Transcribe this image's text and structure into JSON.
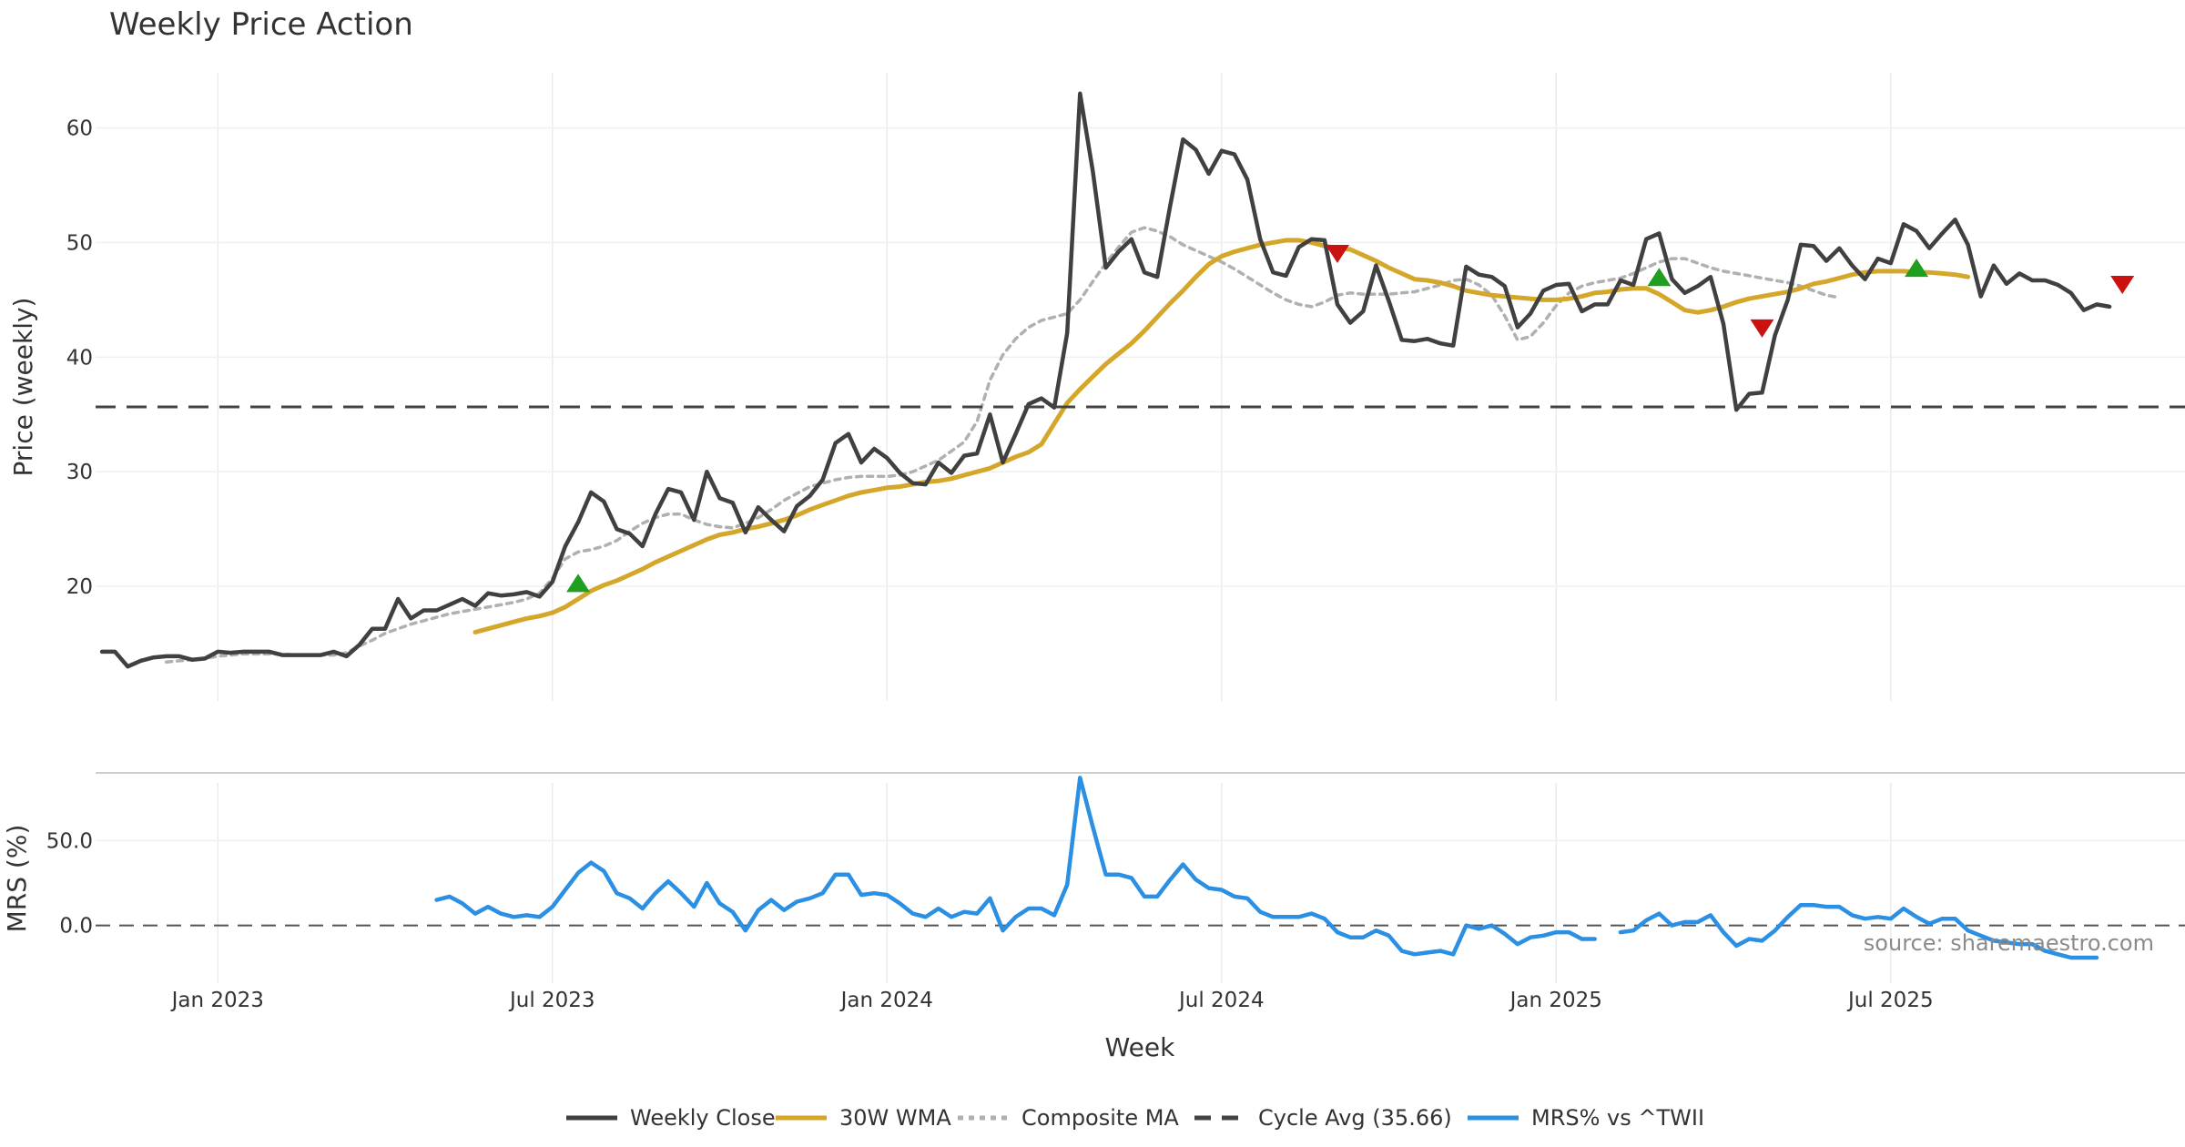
{
  "chart_data": {
    "title": "Weekly Price Action",
    "source": "source: sharemaestro.com",
    "xlabel": "Week",
    "x_ticks": [
      "Jan 2023",
      "Jul 2023",
      "Jan 2024",
      "Jul 2024",
      "Jan 2025",
      "Jul 2025"
    ],
    "x_tick_weeks": [
      9,
      35,
      61,
      87,
      113,
      139
    ],
    "panels": [
      {
        "name": "price",
        "type": "line",
        "ylabel": "Price (weekly)",
        "ylim": [
          10,
          66
        ],
        "y_ticks": [
          20,
          30,
          40,
          50,
          60
        ],
        "grid": true,
        "series": [
          {
            "name": "Weekly Close",
            "color": "#404040",
            "style": "solid",
            "start_week": 0,
            "values": [
              14.3,
              14.3,
              13.0,
              13.5,
              13.8,
              13.9,
              13.9,
              13.6,
              13.7,
              14.3,
              14.2,
              14.3,
              14.3,
              14.3,
              14.0,
              14.0,
              14.0,
              14.0,
              14.3,
              13.9,
              14.9,
              16.3,
              16.3,
              18.9,
              17.2,
              17.9,
              17.9,
              18.4,
              18.9,
              18.3,
              19.4,
              19.2,
              19.3,
              19.5,
              19.1,
              20.4,
              23.5,
              25.6,
              28.2,
              27.4,
              25.0,
              24.6,
              23.5,
              26.3,
              28.5,
              28.2,
              25.8,
              30.0,
              27.7,
              27.3,
              24.7,
              26.9,
              25.8,
              24.8,
              27.0,
              27.9,
              29.3,
              32.5,
              33.3,
              30.8,
              32.0,
              31.2,
              29.9,
              29.0,
              28.9,
              30.8,
              29.9,
              31.4,
              31.6,
              35.0,
              30.8,
              33.3,
              35.9,
              36.4,
              35.6,
              42.1,
              63.0,
              56.2,
              47.8,
              49.2,
              50.3,
              47.4,
              47.0,
              53.2,
              59.0,
              58.1,
              56.0,
              58.0,
              57.7,
              55.5,
              50.3,
              47.4,
              47.1,
              49.6,
              50.3,
              50.2,
              44.6,
              43.0,
              44.0,
              48.0,
              44.9,
              41.5,
              41.4,
              41.6,
              41.2,
              41.0,
              47.9,
              47.2,
              47.0,
              46.2,
              42.6,
              43.8,
              45.8,
              46.3,
              46.4,
              44.0,
              44.6,
              44.6,
              46.7,
              46.3,
              50.3,
              50.8,
              46.8,
              45.6,
              46.2,
              47.0,
              42.9,
              35.4,
              36.8,
              36.9,
              41.9,
              45.0,
              49.8,
              49.7,
              48.4,
              49.5,
              48.0,
              46.8,
              48.6,
              48.2,
              51.6,
              51.0,
              49.5,
              50.8,
              52.0,
              49.8,
              45.3,
              48.0,
              46.4,
              47.3,
              46.7,
              46.7,
              46.3,
              45.6,
              44.1,
              44.6,
              44.4
            ]
          },
          {
            "name": "30W WMA",
            "color": "#d4a62a",
            "style": "solid",
            "start_week": 29,
            "values": [
              16.0,
              16.3,
              16.6,
              16.9,
              17.2,
              17.4,
              17.7,
              18.2,
              18.9,
              19.6,
              20.1,
              20.5,
              21.0,
              21.5,
              22.1,
              22.6,
              23.1,
              23.6,
              24.1,
              24.5,
              24.7,
              25.0,
              25.2,
              25.5,
              25.8,
              26.2,
              26.7,
              27.1,
              27.5,
              27.9,
              28.2,
              28.4,
              28.6,
              28.7,
              28.9,
              29.1,
              29.2,
              29.4,
              29.7,
              30.0,
              30.3,
              30.8,
              31.3,
              31.7,
              32.4,
              34.2,
              36.0,
              37.2,
              38.3,
              39.4,
              40.3,
              41.2,
              42.3,
              43.5,
              44.7,
              45.8,
              47.0,
              48.1,
              48.8,
              49.2,
              49.5,
              49.8,
              50.0,
              50.2,
              50.2,
              50.0,
              49.7,
              49.5,
              49.4,
              48.9,
              48.4,
              47.8,
              47.3,
              46.8,
              46.7,
              46.5,
              46.2,
              45.8,
              45.6,
              45.4,
              45.3,
              45.2,
              45.1,
              45.0,
              45.0,
              45.1,
              45.3,
              45.6,
              45.7,
              45.9,
              46.0,
              46.0,
              45.5,
              44.8,
              44.1,
              43.9,
              44.1,
              44.4,
              44.8,
              45.1,
              45.3,
              45.5,
              45.7,
              46.0,
              46.4,
              46.6,
              46.9,
              47.2,
              47.4,
              47.5,
              47.5,
              47.5,
              47.4,
              47.4,
              47.3,
              47.2,
              47.0
            ]
          },
          {
            "name": "Composite MA",
            "color": "#b0b0b0",
            "style": "dotted",
            "start_week": 5,
            "values": [
              13.4,
              13.5,
              13.6,
              13.7,
              13.9,
              14.0,
              14.1,
              14.1,
              14.1,
              14.1,
              14.0,
              14.0,
              14.0,
              14.0,
              14.2,
              14.8,
              15.3,
              15.9,
              16.3,
              16.7,
              17.0,
              17.3,
              17.6,
              17.8,
              18.0,
              18.2,
              18.4,
              18.6,
              18.9,
              19.4,
              20.7,
              22.4,
              23.0,
              23.2,
              23.5,
              24.0,
              24.8,
              25.5,
              26.0,
              26.3,
              26.3,
              25.8,
              25.4,
              25.2,
              25.1,
              25.5,
              26.0,
              26.7,
              27.5,
              28.1,
              28.7,
              29.0,
              29.3,
              29.5,
              29.6,
              29.6,
              29.6,
              29.7,
              30.0,
              30.5,
              31.0,
              31.8,
              32.6,
              34.4,
              38.0,
              40.2,
              41.6,
              42.6,
              43.2,
              43.5,
              43.8,
              45.0,
              46.6,
              48.2,
              49.6,
              50.9,
              51.3,
              51.0,
              50.5,
              49.8,
              49.3,
              48.8,
              48.3,
              47.7,
              47.0,
              46.3,
              45.6,
              45.0,
              44.6,
              44.4,
              44.8,
              45.4,
              45.6,
              45.5,
              45.5,
              45.5,
              45.6,
              45.7,
              46.0,
              46.3,
              46.7,
              46.8,
              46.3,
              45.4,
              43.6,
              41.5,
              41.8,
              43.0,
              44.5,
              45.6,
              46.2,
              46.5,
              46.7,
              46.9,
              47.3,
              47.8,
              48.3,
              48.6,
              48.6,
              48.2,
              47.8,
              47.5,
              47.3,
              47.1,
              46.9,
              46.7,
              46.5,
              46.2,
              45.8,
              45.4,
              45.2
            ]
          },
          {
            "name": "Cycle Avg (35.66)",
            "color": "#444444",
            "style": "dashed",
            "type": "hline",
            "value": 35.66
          }
        ],
        "markers": [
          {
            "type": "buy",
            "week": 37,
            "value": 20.3,
            "color": "#1f9e1f"
          },
          {
            "type": "sell",
            "week": 96,
            "value": 49.0,
            "color": "#cc1111"
          },
          {
            "type": "buy",
            "week": 121,
            "value": 47.0,
            "color": "#1f9e1f"
          },
          {
            "type": "sell",
            "week": 129,
            "value": 42.5,
            "color": "#cc1111"
          },
          {
            "type": "buy",
            "week": 141,
            "value": 47.8,
            "color": "#1f9e1f"
          },
          {
            "type": "sell",
            "week": 157,
            "value": 46.3,
            "color": "#cc1111"
          }
        ]
      },
      {
        "name": "mrs",
        "type": "line",
        "ylabel": "MRS (%)",
        "ylim": [
          -34,
          84
        ],
        "y_ticks": [
          0.0,
          50.0
        ],
        "y_tick_labels": [
          "0.0",
          "50.0"
        ],
        "zero_line": true,
        "series": [
          {
            "name": "MRS% vs ^TWII",
            "color": "#2b8fe3",
            "style": "solid",
            "start_week": 26,
            "values": [
              15,
              17,
              13,
              7,
              11,
              7,
              5,
              6,
              5,
              11,
              21,
              31,
              37,
              32,
              19,
              16,
              10,
              19,
              26,
              19,
              11,
              25,
              13,
              8,
              -3,
              9,
              15,
              9,
              14,
              16,
              19,
              30,
              30,
              18,
              19,
              18,
              13,
              7,
              5,
              10,
              5,
              8,
              7,
              16,
              -3,
              5,
              10,
              10,
              6,
              24,
              87,
              58,
              30,
              30,
              28,
              17,
              17,
              27,
              36,
              27,
              22,
              21,
              17,
              16,
              8,
              5,
              5,
              5,
              7,
              4,
              -4,
              -7,
              -7,
              -3,
              -6,
              -15,
              -17,
              -16,
              -15,
              -17,
              0,
              -2,
              0,
              -5,
              -11,
              -7,
              -6,
              -4,
              -4,
              -8,
              -8,
              null,
              -4,
              -3,
              3,
              7,
              0,
              2,
              2,
              6,
              -4,
              -12,
              -8,
              -9,
              -3,
              5,
              12,
              12,
              11,
              11,
              6,
              4,
              5,
              4,
              10,
              5,
              1,
              4,
              4,
              -3,
              -6,
              -9,
              -10,
              -11,
              -11,
              -15,
              -17,
              -19,
              -19,
              -19
            ]
          }
        ]
      }
    ],
    "legend": {
      "position": "bottom",
      "entries": [
        {
          "label": "Weekly Close",
          "color": "#404040",
          "style": "solid"
        },
        {
          "label": "30W WMA",
          "color": "#d4a62a",
          "style": "solid"
        },
        {
          "label": "Composite MA",
          "color": "#b0b0b0",
          "style": "dotted"
        },
        {
          "label": "Cycle Avg (35.66)",
          "color": "#444444",
          "style": "dashed"
        },
        {
          "label": "MRS% vs ^TWII",
          "color": "#2b8fe3",
          "style": "solid"
        }
      ]
    }
  }
}
